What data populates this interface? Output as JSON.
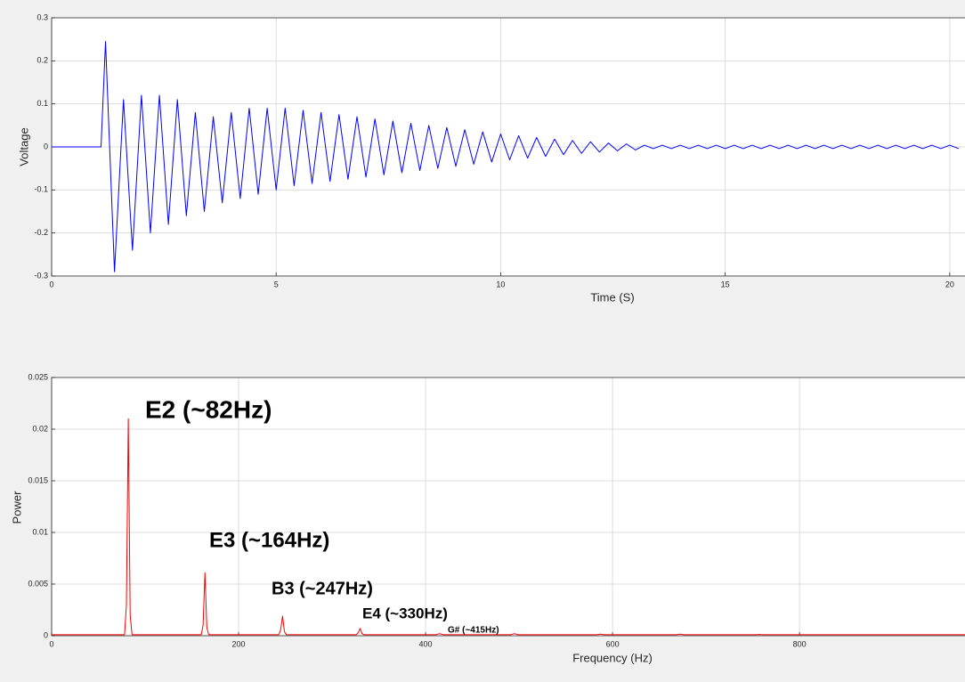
{
  "chart_data": [
    {
      "type": "line",
      "color": "#0000ff",
      "x_label": "Time (S)",
      "y_label": "Voltage",
      "xlim": [
        0,
        20.34
      ],
      "ylim": [
        -0.3,
        0.3
      ],
      "xticks": [
        0,
        5,
        10,
        15,
        20
      ],
      "yticks": [
        -0.3,
        -0.2,
        -0.1,
        0,
        0.1,
        0.2,
        0.3
      ],
      "grid": true,
      "x": [
        0,
        1.1,
        1.2,
        1.4,
        1.6,
        1.8,
        2.0,
        2.2,
        2.4,
        2.6,
        2.8,
        3.0,
        3.2,
        3.4,
        3.6,
        3.8,
        4.0,
        4.2,
        4.4,
        4.6,
        4.8,
        5.0,
        5.2,
        5.4,
        5.6,
        5.8,
        6.0,
        6.2,
        6.4,
        6.6,
        6.8,
        7.0,
        7.2,
        7.4,
        7.6,
        7.8,
        8.0,
        8.2,
        8.4,
        8.6,
        8.8,
        9.0,
        9.2,
        9.4,
        9.6,
        9.8,
        10.0,
        10.2,
        10.4,
        10.6,
        10.8,
        11.0,
        11.2,
        11.4,
        11.6,
        11.8,
        12.0,
        12.2,
        12.4,
        12.6,
        12.8,
        13.0,
        13.2,
        13.4,
        13.6,
        13.8,
        14.0,
        14.2,
        14.4,
        14.6,
        14.8,
        15.0,
        15.2,
        15.4,
        15.6,
        15.8,
        16.0,
        16.2,
        16.4,
        16.6,
        16.8,
        17.0,
        17.2,
        17.4,
        17.6,
        17.8,
        18.0,
        18.2,
        18.4,
        18.6,
        18.8,
        19.0,
        19.2,
        19.4,
        19.6,
        19.8,
        20.0,
        20.2
      ],
      "values": [
        0,
        0,
        0.245,
        -0.29,
        0.11,
        -0.24,
        0.12,
        -0.2,
        0.12,
        -0.18,
        0.11,
        -0.16,
        0.08,
        -0.15,
        0.07,
        -0.13,
        0.08,
        -0.12,
        0.09,
        -0.11,
        0.09,
        -0.1,
        0.09,
        -0.09,
        0.085,
        -0.085,
        0.08,
        -0.08,
        0.075,
        -0.075,
        0.07,
        -0.07,
        0.065,
        -0.065,
        0.06,
        -0.06,
        0.055,
        -0.055,
        0.05,
        -0.05,
        0.045,
        -0.045,
        0.04,
        -0.04,
        0.035,
        -0.035,
        0.03,
        -0.03,
        0.026,
        -0.026,
        0.022,
        -0.022,
        0.018,
        -0.018,
        0.015,
        -0.015,
        0.012,
        -0.012,
        0.009,
        -0.009,
        0.007,
        -0.007,
        0.004,
        -0.004,
        0.004,
        -0.004,
        0.004,
        -0.004,
        0.004,
        -0.004,
        0.004,
        -0.004,
        0.004,
        -0.004,
        0.004,
        -0.004,
        0.004,
        -0.004,
        0.004,
        -0.004,
        0.004,
        -0.004,
        0.004,
        -0.004,
        0.004,
        -0.004,
        0.004,
        -0.004,
        0.004,
        -0.004,
        0.004,
        -0.004,
        0.004,
        -0.004,
        0.004,
        -0.004,
        0.004,
        -0.004
      ]
    },
    {
      "type": "line",
      "color": "#ff0000",
      "x_label": "Frequency (Hz)",
      "y_label": "Power",
      "xlim": [
        0,
        977
      ],
      "ylim": [
        0,
        0.025
      ],
      "xticks": [
        0,
        200,
        400,
        600,
        800
      ],
      "yticks": [
        0,
        0.005,
        0.01,
        0.015,
        0.02,
        0.025
      ],
      "grid": true,
      "annotations": [
        "E2 (~82Hz)",
        "E3 (~164Hz)",
        "B3 (~247Hz)",
        "E4 (~330Hz)",
        "G# (~415Hz)"
      ],
      "x": [
        0,
        78,
        80,
        82,
        84,
        86,
        160,
        162,
        164,
        166,
        168,
        243,
        245,
        247,
        249,
        251,
        326,
        328,
        330,
        332,
        334,
        411,
        415,
        419,
        491,
        495,
        499,
        583,
        587,
        591,
        668,
        672,
        676,
        753,
        757,
        761,
        977
      ],
      "values": [
        0.0001,
        0.0001,
        0.003,
        0.021,
        0.002,
        0.0001,
        0.0001,
        0.001,
        0.0061,
        0.0008,
        0.0001,
        0.0001,
        0.0006,
        0.0019,
        0.0004,
        0.0001,
        0.0001,
        0.0003,
        0.0007,
        0.0002,
        0.0001,
        0.0001,
        0.0002,
        0.0001,
        0.0001,
        0.0002,
        0.0001,
        0.0001,
        0.00015,
        0.0001,
        0.0001,
        0.00015,
        0.0001,
        0.0001,
        0.00012,
        0.0001,
        0.0001
      ]
    }
  ]
}
